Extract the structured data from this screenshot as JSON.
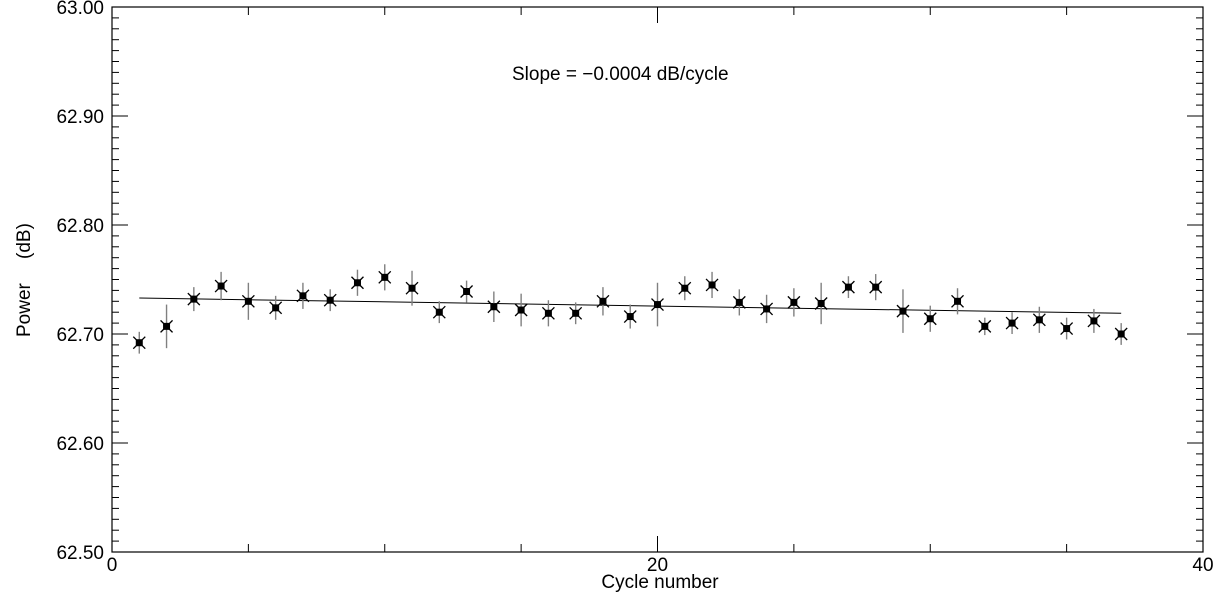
{
  "chart_data": {
    "type": "scatter",
    "title": "",
    "xlabel": "Cycle number",
    "ylabel": "Power (dB)",
    "ylabel_parts": [
      "Power",
      "(dB)"
    ],
    "annotation": "Slope = −0.0004 dB/cycle",
    "xlim": [
      0,
      40
    ],
    "ylim": [
      62.5,
      63.0
    ],
    "x_ticks": [
      0,
      20,
      40
    ],
    "x_tick_labels": [
      "0",
      "20",
      "40"
    ],
    "y_ticks": [
      62.5,
      62.6,
      62.7,
      62.8,
      62.9,
      63.0
    ],
    "y_tick_labels": [
      "62.50",
      "62.60",
      "62.70",
      "62.80",
      "62.90",
      "63.00"
    ],
    "grid": false,
    "marker_color": "#000000",
    "errorbar_color": "#808080",
    "points": [
      {
        "x": 1,
        "y": 62.692,
        "err": 0.01
      },
      {
        "x": 2,
        "y": 62.707,
        "err": 0.02
      },
      {
        "x": 3,
        "y": 62.732,
        "err": 0.011
      },
      {
        "x": 4,
        "y": 62.744,
        "err": 0.013
      },
      {
        "x": 5,
        "y": 62.73,
        "err": 0.017
      },
      {
        "x": 6,
        "y": 62.724,
        "err": 0.011
      },
      {
        "x": 7,
        "y": 62.735,
        "err": 0.012
      },
      {
        "x": 8,
        "y": 62.731,
        "err": 0.01
      },
      {
        "x": 9,
        "y": 62.747,
        "err": 0.012
      },
      {
        "x": 10,
        "y": 62.752,
        "err": 0.012
      },
      {
        "x": 11,
        "y": 62.742,
        "err": 0.016
      },
      {
        "x": 12,
        "y": 62.72,
        "err": 0.01
      },
      {
        "x": 13,
        "y": 62.739,
        "err": 0.01
      },
      {
        "x": 14,
        "y": 62.725,
        "err": 0.014
      },
      {
        "x": 15,
        "y": 62.722,
        "err": 0.015
      },
      {
        "x": 16,
        "y": 62.719,
        "err": 0.012
      },
      {
        "x": 17,
        "y": 62.719,
        "err": 0.01
      },
      {
        "x": 18,
        "y": 62.73,
        "err": 0.013
      },
      {
        "x": 19,
        "y": 62.716,
        "err": 0.011
      },
      {
        "x": 20,
        "y": 62.727,
        "err": 0.02
      },
      {
        "x": 21,
        "y": 62.742,
        "err": 0.011
      },
      {
        "x": 22,
        "y": 62.745,
        "err": 0.012
      },
      {
        "x": 23,
        "y": 62.729,
        "err": 0.012
      },
      {
        "x": 24,
        "y": 62.723,
        "err": 0.013
      },
      {
        "x": 25,
        "y": 62.729,
        "err": 0.013
      },
      {
        "x": 26,
        "y": 62.728,
        "err": 0.019
      },
      {
        "x": 27,
        "y": 62.743,
        "err": 0.01
      },
      {
        "x": 28,
        "y": 62.743,
        "err": 0.012
      },
      {
        "x": 29,
        "y": 62.721,
        "err": 0.02
      },
      {
        "x": 30,
        "y": 62.714,
        "err": 0.012
      },
      {
        "x": 31,
        "y": 62.73,
        "err": 0.012
      },
      {
        "x": 32,
        "y": 62.707,
        "err": 0.008
      },
      {
        "x": 33,
        "y": 62.71,
        "err": 0.01
      },
      {
        "x": 34,
        "y": 62.713,
        "err": 0.012
      },
      {
        "x": 35,
        "y": 62.705,
        "err": 0.01
      },
      {
        "x": 36,
        "y": 62.712,
        "err": 0.011
      },
      {
        "x": 37,
        "y": 62.7,
        "err": 0.01
      }
    ],
    "fit_line": {
      "x": [
        1,
        37
      ],
      "y": [
        62.733,
        62.719
      ]
    }
  }
}
